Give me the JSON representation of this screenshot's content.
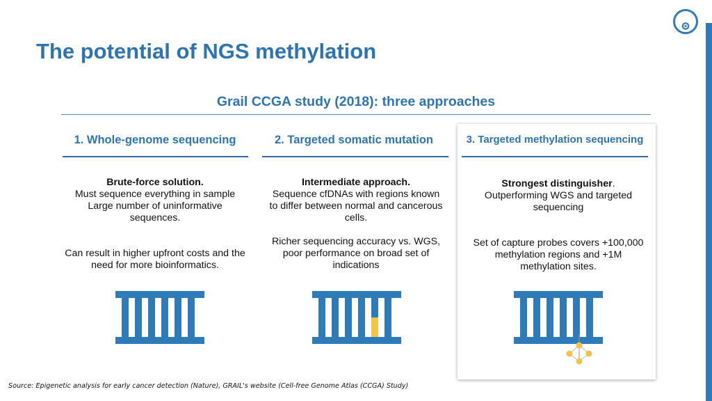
{
  "slide": {
    "title": "The potential of NGS methylation",
    "subtitle": "Grail CCGA study (2018): three approaches",
    "source": "Source: Epigenetic analysis for early cancer detection (Nature), GRAIL's website (Cell-free Genome Atlas (CCGA) Study)"
  },
  "colors": {
    "brand_blue": "#2e75b0",
    "highlight_yellow": "#f2c542",
    "probe_gold": "#efc24a"
  },
  "icons": [
    "logo-icon",
    "dna-ladder-icon",
    "mutation-ladder-icon",
    "methylation-ladder-icon"
  ],
  "columns": [
    {
      "heading": "1. Whole-genome sequencing",
      "lead": "Brute-force solution.",
      "lead_suffix": "",
      "lines": [
        "Must sequence everything in sample",
        "Large number of uninformative sequences."
      ],
      "note": "Can result in higher upfront costs and the need for more bioinformatics."
    },
    {
      "heading": "2. Targeted somatic mutation",
      "lead": "Intermediate approach.",
      "lead_suffix": "",
      "lines": [
        "Sequence cfDNAs with regions known to differ between normal and cancerous cells."
      ],
      "note": "Richer sequencing accuracy vs. WGS, poor performance on broad set of indications"
    },
    {
      "heading": "3. Targeted methylation sequencing",
      "lead": "Strongest distinguisher",
      "lead_suffix": ".",
      "lines": [
        "Outperforming WGS and targeted sequencing"
      ],
      "note": "Set of capture probes covers +100,000 methylation regions and +1M methylation sites."
    }
  ]
}
